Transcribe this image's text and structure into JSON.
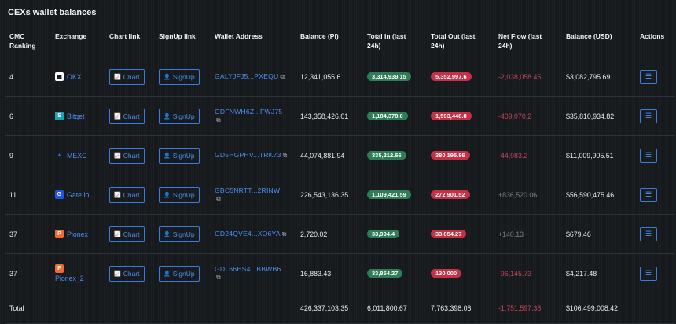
{
  "title": "CEXs wallet balances",
  "headers": {
    "rank": "CMC Ranking",
    "exchange": "Exchange",
    "chart": "Chart link",
    "signup": "SignUp link",
    "address": "Wallet Address",
    "balance_pi": "Balance (Pi)",
    "total_in": "Total In (last 24h)",
    "total_out": "Total Out (last 24h)",
    "net_flow": "Net Flow (last 24h)",
    "balance_usd": "Balance (USD)",
    "actions": "Actions"
  },
  "buttons": {
    "chart": "Chart",
    "signup": "SignUp"
  },
  "rows": [
    {
      "rank": "4",
      "exchange": "OKX",
      "logo": "okx-logo-icon",
      "address": "GALYJFJ5...PXEQU",
      "balance_pi": "12,341,055.6",
      "total_in": "3,314,939.15",
      "total_out": "5,352,997.6",
      "net_flow": "-2,038,058.45",
      "net_sign": "neg",
      "balance_usd": "$3,082,795.69"
    },
    {
      "rank": "6",
      "exchange": "Bitget",
      "logo": "bitget-logo-icon",
      "address": "GDFNWH6Z...FWJ75",
      "balance_pi": "143,358,426.01",
      "total_in": "1,184,378.6",
      "total_out": "1,593,448.8",
      "net_flow": "-409,070.2",
      "net_sign": "neg",
      "balance_usd": "$35,810,934.82"
    },
    {
      "rank": "9",
      "exchange": "MEXC",
      "logo": "mexc-logo-icon",
      "address": "GD5HGPHV...TRK73",
      "balance_pi": "44,074,881.94",
      "total_in": "335,212.66",
      "total_out": "380,195.86",
      "net_flow": "-44,983.2",
      "net_sign": "neg",
      "balance_usd": "$11,009,905.51"
    },
    {
      "rank": "11",
      "exchange": "Gate.io",
      "logo": "gateio-logo-icon",
      "address": "GBC5NRTT...2RINW",
      "balance_pi": "226,543,136.35",
      "total_in": "1,109,421.59",
      "total_out": "272,901.52",
      "net_flow": "+836,520.06",
      "net_sign": "pos",
      "balance_usd": "$56,590,475.46"
    },
    {
      "rank": "37",
      "exchange": "Pionex",
      "logo": "pionex-logo-icon",
      "address": "GD24QVE4...XO6YA",
      "balance_pi": "2,720.02",
      "total_in": "33,994.4",
      "total_out": "33,854.27",
      "net_flow": "+140.13",
      "net_sign": "pos",
      "balance_usd": "$679.46"
    },
    {
      "rank": "37",
      "exchange": "Pionex_2",
      "logo": "pionex-logo-icon",
      "address": "GDL66HS4...BBWB6",
      "balance_pi": "16,883.43",
      "total_in": "33,854.27",
      "total_out": "130,000",
      "net_flow": "-96,145.73",
      "net_sign": "neg",
      "balance_usd": "$4,217.48"
    }
  ],
  "total": {
    "label": "Total",
    "balance_pi": "426,337,103.35",
    "total_in": "6,011,800.67",
    "total_out": "7,763,398.06",
    "net_flow": "-1,751,597.38",
    "balance_usd": "$106,499,008.42"
  },
  "colors": {
    "accent": "#4c8ff0",
    "positive_pill": "#2f7d56",
    "negative_pill": "#c72f45",
    "negative_text": "#c54455"
  }
}
